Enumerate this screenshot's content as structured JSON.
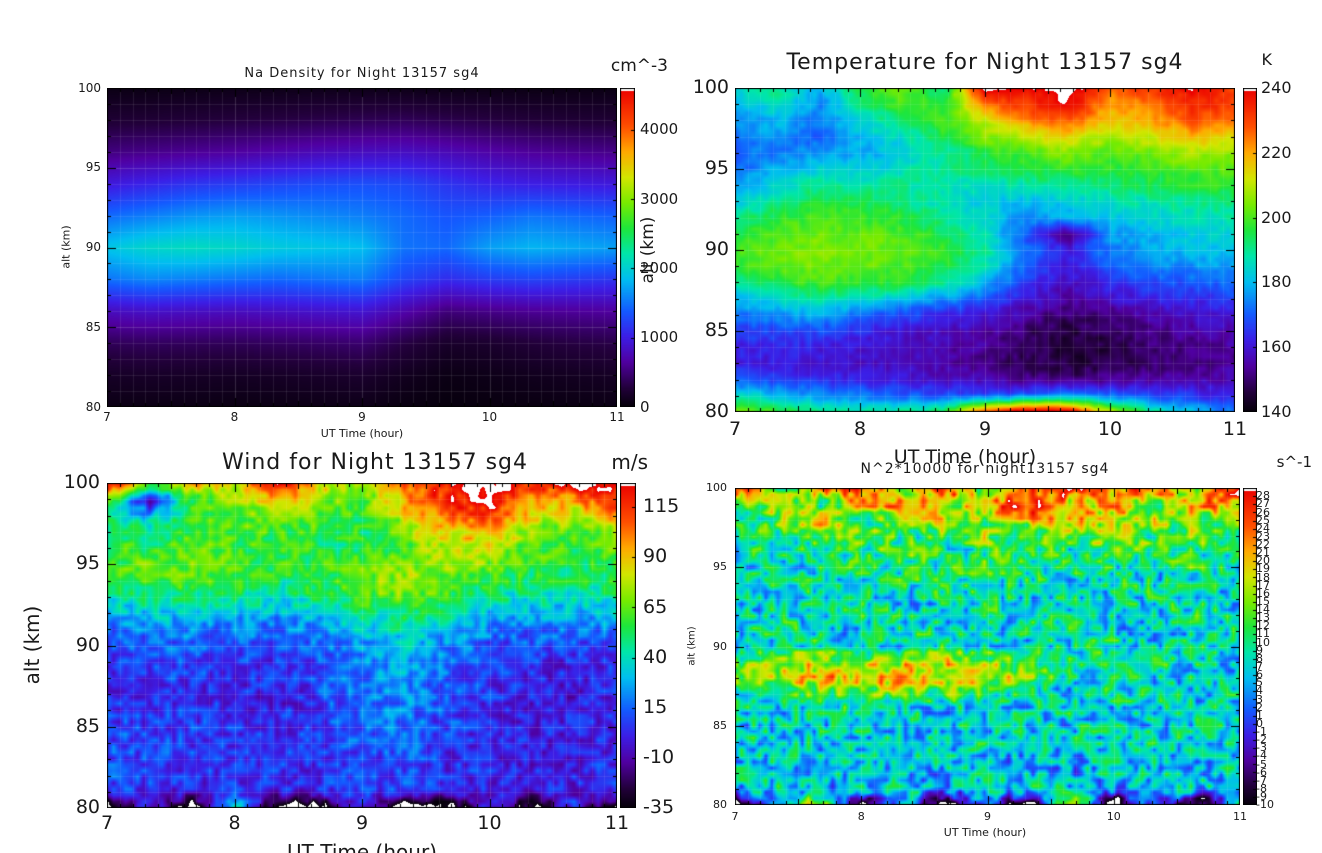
{
  "palette": [
    [
      0.0,
      5,
      0,
      10
    ],
    [
      0.06,
      35,
      0,
      60
    ],
    [
      0.14,
      80,
      0,
      160
    ],
    [
      0.22,
      60,
      30,
      230
    ],
    [
      0.3,
      20,
      90,
      255
    ],
    [
      0.4,
      0,
      190,
      240
    ],
    [
      0.48,
      0,
      230,
      170
    ],
    [
      0.56,
      30,
      230,
      60
    ],
    [
      0.64,
      120,
      235,
      0
    ],
    [
      0.72,
      210,
      230,
      0
    ],
    [
      0.8,
      255,
      170,
      0
    ],
    [
      0.88,
      255,
      80,
      0
    ],
    [
      1.0,
      235,
      0,
      0
    ]
  ],
  "chart_data": [
    {
      "type": "heatmap",
      "id": "na_density",
      "title": "Na Density for Night 13157 sg4",
      "colorbar_unit": "cm^-3",
      "xlabel": "UT Time (hour)",
      "ylabel": "alt (km)",
      "x_range": [
        7,
        11
      ],
      "y_range": [
        80,
        100
      ],
      "x_ticks": [
        7,
        8,
        9,
        10,
        11
      ],
      "y_ticks": [
        100,
        95,
        90,
        85,
        80
      ],
      "z_range": [
        0,
        4600
      ],
      "colorbar_ticks": [
        0,
        1000,
        2000,
        3000,
        4000
      ],
      "noise": 0,
      "grid_note": "rows 100km(top) to 80km(bottom), cols 7h to 11h",
      "grid": [
        [
          60,
          60,
          70,
          80,
          80,
          90,
          90,
          80,
          70,
          70,
          60,
          60,
          60
        ],
        [
          230,
          240,
          260,
          280,
          300,
          330,
          360,
          380,
          340,
          300,
          260,
          240,
          230
        ],
        [
          520,
          560,
          600,
          640,
          700,
          760,
          800,
          820,
          760,
          680,
          620,
          580,
          560
        ],
        [
          950,
          1050,
          1150,
          1200,
          1250,
          1300,
          1320,
          1280,
          1150,
          1050,
          1000,
          980,
          950
        ],
        [
          1450,
          1550,
          1650,
          1700,
          1650,
          1600,
          1550,
          1450,
          1350,
          1400,
          1500,
          1450,
          1400
        ],
        [
          1900,
          2050,
          2100,
          2050,
          1950,
          1900,
          1850,
          1500,
          1450,
          1700,
          1800,
          1750,
          1700
        ],
        [
          1500,
          1600,
          1550,
          1500,
          1450,
          1500,
          1550,
          1250,
          1100,
          1200,
          1250,
          1200,
          1150
        ],
        [
          800,
          850,
          820,
          800,
          830,
          870,
          900,
          700,
          500,
          550,
          600,
          620,
          640
        ],
        [
          380,
          400,
          390,
          380,
          400,
          430,
          460,
          300,
          180,
          200,
          260,
          300,
          320
        ],
        [
          160,
          170,
          160,
          150,
          160,
          180,
          200,
          120,
          60,
          80,
          110,
          130,
          150
        ],
        [
          60,
          60,
          60,
          50,
          60,
          70,
          80,
          40,
          20,
          30,
          40,
          50,
          60
        ]
      ]
    },
    {
      "type": "heatmap",
      "id": "temperature",
      "title": "Temperature for Night 13157 sg4",
      "colorbar_unit": "K",
      "xlabel": "UT Time (hour)",
      "ylabel": "alt (km)",
      "x_range": [
        7,
        11
      ],
      "y_range": [
        80,
        100
      ],
      "x_ticks": [
        7,
        8,
        9,
        10,
        11
      ],
      "y_ticks": [
        100,
        95,
        90,
        85,
        80
      ],
      "z_range": [
        140,
        240
      ],
      "colorbar_ticks": [
        140,
        160,
        180,
        200,
        220,
        240
      ],
      "noise": 3.5,
      "grid_note": "rows 100km(top) to 80km(bottom), cols 7h to 11h; values >240 render white",
      "grid": [
        [
          185,
          190,
          178,
          196,
          205,
          190,
          243,
          238,
          246,
          225,
          232,
          240,
          228
        ],
        [
          180,
          186,
          175,
          190,
          200,
          195,
          225,
          232,
          240,
          220,
          226,
          235,
          230
        ],
        [
          175,
          180,
          172,
          185,
          192,
          200,
          210,
          222,
          228,
          215,
          220,
          228,
          224
        ],
        [
          172,
          176,
          170,
          180,
          186,
          195,
          205,
          210,
          215,
          208,
          212,
          218,
          215
        ],
        [
          170,
          174,
          176,
          178,
          182,
          188,
          195,
          200,
          205,
          200,
          204,
          208,
          206
        ],
        [
          172,
          178,
          184,
          182,
          186,
          190,
          192,
          195,
          198,
          196,
          198,
          200,
          202
        ],
        [
          176,
          184,
          190,
          188,
          190,
          188,
          186,
          188,
          190,
          192,
          194,
          196,
          198
        ],
        [
          182,
          190,
          196,
          194,
          192,
          186,
          182,
          180,
          182,
          186,
          188,
          190,
          192
        ],
        [
          190,
          196,
          200,
          198,
          196,
          190,
          184,
          176,
          178,
          182,
          184,
          186,
          188
        ],
        [
          196,
          200,
          203,
          202,
          200,
          194,
          186,
          168,
          150,
          176,
          180,
          182,
          184
        ],
        [
          200,
          203,
          205,
          204,
          202,
          198,
          190,
          172,
          162,
          174,
          178,
          180,
          182
        ],
        [
          198,
          202,
          204,
          203,
          200,
          196,
          188,
          170,
          160,
          170,
          174,
          176,
          178
        ],
        [
          190,
          196,
          200,
          198,
          196,
          190,
          180,
          165,
          158,
          164,
          168,
          170,
          172
        ],
        [
          180,
          186,
          190,
          186,
          182,
          176,
          170,
          160,
          154,
          158,
          162,
          164,
          166
        ],
        [
          172,
          176,
          178,
          172,
          168,
          164,
          160,
          154,
          150,
          152,
          156,
          158,
          160
        ],
        [
          166,
          168,
          168,
          164,
          160,
          158,
          155,
          150,
          146,
          148,
          152,
          154,
          156
        ],
        [
          162,
          163,
          162,
          160,
          158,
          156,
          153,
          148,
          145,
          146,
          150,
          152,
          154
        ],
        [
          162,
          161,
          160,
          158,
          157,
          155,
          152,
          148,
          146,
          147,
          150,
          152,
          153
        ],
        [
          168,
          166,
          164,
          162,
          160,
          158,
          155,
          152,
          150,
          152,
          154,
          155,
          156
        ],
        [
          185,
          180,
          176,
          172,
          170,
          168,
          166,
          170,
          175,
          172,
          168,
          165,
          162
        ],
        [
          205,
          198,
          192,
          188,
          190,
          195,
          230,
          246,
          242,
          210,
          190,
          180,
          172
        ]
      ]
    },
    {
      "type": "heatmap",
      "id": "wind",
      "title": "Wind for Night 13157 sg4",
      "colorbar_unit": "m/s",
      "xlabel": "UT Time (hour)",
      "ylabel": "alt (km)",
      "x_range": [
        7,
        11
      ],
      "y_range": [
        80,
        100
      ],
      "x_ticks": [
        7,
        8,
        9,
        10,
        11
      ],
      "y_ticks": [
        100,
        95,
        90,
        85,
        80
      ],
      "z_range": [
        -35,
        127
      ],
      "colorbar_ticks": [
        -35,
        -10,
        15,
        40,
        65,
        90,
        115
      ],
      "noise": 15,
      "grid_note": "rows 100km(top) to 80km(bottom), cols 7h to 11h; out-of-range renders white",
      "grid": [
        [
          135,
          60,
          95,
          80,
          135,
          90,
          70,
          110,
          120,
          135,
          115,
          132,
          120
        ],
        [
          70,
          -15,
          60,
          70,
          90,
          75,
          60,
          95,
          118,
          128,
          100,
          95,
          122
        ],
        [
          45,
          30,
          55,
          65,
          70,
          65,
          55,
          80,
          105,
          112,
          85,
          75,
          95
        ],
        [
          50,
          45,
          60,
          62,
          60,
          58,
          52,
          70,
          88,
          92,
          70,
          60,
          78
        ],
        [
          55,
          58,
          65,
          60,
          55,
          52,
          50,
          62,
          78,
          80,
          62,
          55,
          66
        ],
        [
          60,
          65,
          70,
          62,
          55,
          58,
          62,
          70,
          72,
          68,
          58,
          52,
          60
        ],
        [
          55,
          60,
          62,
          58,
          50,
          55,
          68,
          75,
          65,
          55,
          50,
          48,
          55
        ],
        [
          42,
          48,
          50,
          46,
          42,
          48,
          60,
          68,
          55,
          45,
          42,
          40,
          46
        ],
        [
          28,
          32,
          34,
          30,
          28,
          34,
          45,
          52,
          42,
          32,
          30,
          28,
          32
        ],
        [
          18,
          20,
          22,
          18,
          16,
          22,
          32,
          40,
          30,
          20,
          18,
          16,
          20
        ],
        [
          12,
          14,
          15,
          12,
          10,
          15,
          25,
          32,
          22,
          12,
          10,
          8,
          12
        ],
        [
          8,
          10,
          10,
          8,
          5,
          12,
          22,
          28,
          18,
          8,
          5,
          3,
          8
        ],
        [
          5,
          8,
          6,
          4,
          2,
          10,
          20,
          25,
          15,
          5,
          2,
          0,
          5
        ],
        [
          4,
          6,
          4,
          2,
          0,
          8,
          18,
          22,
          12,
          4,
          0,
          -2,
          3
        ],
        [
          5,
          6,
          5,
          3,
          2,
          8,
          16,
          20,
          10,
          3,
          0,
          -2,
          2
        ],
        [
          8,
          8,
          6,
          5,
          4,
          8,
          14,
          18,
          8,
          2,
          0,
          -1,
          2
        ],
        [
          10,
          10,
          8,
          6,
          5,
          8,
          12,
          15,
          6,
          2,
          0,
          0,
          3
        ],
        [
          12,
          10,
          8,
          6,
          5,
          6,
          10,
          12,
          5,
          2,
          1,
          1,
          4
        ],
        [
          10,
          8,
          6,
          5,
          4,
          5,
          8,
          10,
          4,
          2,
          1,
          2,
          5
        ],
        [
          6,
          4,
          2,
          2,
          2,
          3,
          6,
          8,
          3,
          1,
          0,
          1,
          4
        ],
        [
          -45,
          5,
          -45,
          40,
          -45,
          -45,
          8,
          -45,
          -45,
          2,
          -40,
          3,
          -45
        ]
      ]
    },
    {
      "type": "heatmap",
      "id": "n2",
      "title": "N^2*10000 for night13157 sg4",
      "colorbar_unit": "s^-1",
      "xlabel": "UT Time (hour)",
      "ylabel": "alt (km)",
      "x_range": [
        7,
        11
      ],
      "y_range": [
        80,
        100
      ],
      "x_ticks": [
        7,
        8,
        9,
        10,
        11
      ],
      "y_ticks": [
        100,
        95,
        90,
        85,
        80
      ],
      "z_range": [
        -10,
        29
      ],
      "colorbar_ticks": [
        28,
        27,
        26,
        25,
        24,
        23,
        22,
        21,
        20,
        19,
        18,
        17,
        16,
        15,
        14,
        13,
        12,
        11,
        10,
        9,
        8,
        7,
        6,
        5,
        4,
        3,
        2,
        1,
        0,
        -1,
        -2,
        -3,
        -4,
        -5,
        -6,
        -7,
        -8,
        -9,
        -10
      ],
      "noise": 7,
      "grid_note": "rows 100km(top) to 80km(bottom), cols 7h to 11h; out-of-range renders white",
      "grid": [
        [
          30,
          8,
          22,
          26,
          14,
          30,
          10,
          24,
          30,
          18,
          26,
          12,
          30
        ],
        [
          12,
          18,
          10,
          20,
          24,
          14,
          22,
          30,
          16,
          24,
          12,
          26,
          18
        ],
        [
          8,
          14,
          20,
          10,
          16,
          20,
          12,
          18,
          22,
          14,
          18,
          10,
          14
        ],
        [
          10,
          8,
          14,
          16,
          10,
          12,
          16,
          10,
          14,
          18,
          10,
          16,
          12
        ],
        [
          6,
          12,
          8,
          10,
          14,
          8,
          10,
          14,
          8,
          12,
          14,
          8,
          10
        ],
        [
          8,
          6,
          10,
          12,
          8,
          10,
          12,
          8,
          10,
          8,
          6,
          12,
          8
        ],
        [
          6,
          10,
          8,
          6,
          10,
          12,
          8,
          10,
          6,
          10,
          8,
          6,
          10
        ],
        [
          8,
          6,
          10,
          8,
          6,
          8,
          10,
          6,
          8,
          6,
          10,
          8,
          6
        ],
        [
          6,
          8,
          6,
          10,
          8,
          6,
          8,
          10,
          6,
          8,
          6,
          10,
          8
        ],
        [
          8,
          10,
          8,
          6,
          10,
          8,
          6,
          8,
          10,
          6,
          8,
          6,
          8
        ],
        [
          6,
          8,
          10,
          8,
          6,
          10,
          8,
          6,
          8,
          10,
          6,
          8,
          10
        ],
        [
          14,
          16,
          18,
          16,
          18,
          20,
          16,
          12,
          10,
          8,
          10,
          8,
          6
        ],
        [
          16,
          18,
          20,
          22,
          20,
          18,
          20,
          14,
          8,
          10,
          6,
          8,
          8
        ],
        [
          10,
          12,
          14,
          12,
          14,
          12,
          10,
          8,
          6,
          8,
          8,
          6,
          8
        ],
        [
          8,
          6,
          8,
          10,
          8,
          6,
          8,
          6,
          8,
          6,
          8,
          8,
          6
        ],
        [
          6,
          8,
          6,
          8,
          6,
          8,
          6,
          8,
          6,
          8,
          6,
          6,
          8
        ],
        [
          8,
          6,
          8,
          6,
          8,
          6,
          8,
          6,
          8,
          6,
          8,
          8,
          6
        ],
        [
          6,
          8,
          6,
          8,
          6,
          8,
          6,
          4,
          6,
          8,
          6,
          6,
          8
        ],
        [
          8,
          6,
          8,
          6,
          4,
          6,
          8,
          6,
          4,
          6,
          8,
          6,
          6
        ],
        [
          4,
          8,
          4,
          6,
          8,
          4,
          6,
          8,
          6,
          4,
          6,
          8,
          4
        ],
        [
          -14,
          6,
          20,
          -14,
          8,
          -14,
          4,
          -14,
          24,
          -14,
          6,
          -14,
          8
        ]
      ]
    }
  ]
}
